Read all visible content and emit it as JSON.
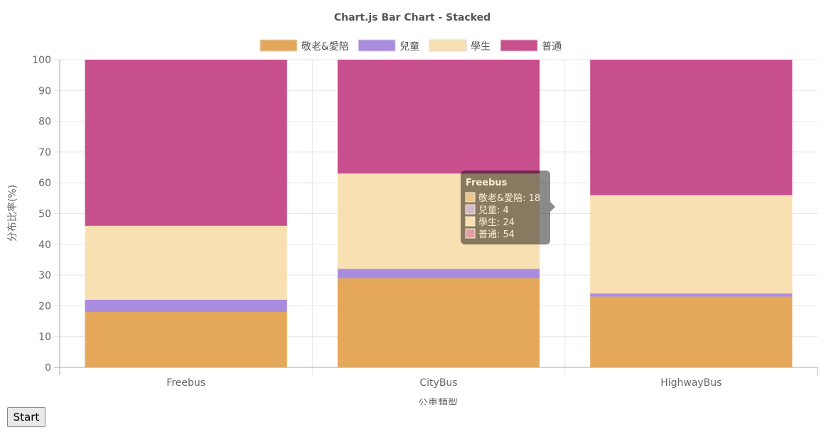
{
  "chart_data": {
    "type": "bar",
    "stacked": true,
    "title": "Chart.js Bar Chart - Stacked",
    "xlabel": "公車類型",
    "ylabel": "分布比率(%)",
    "ylim": [
      0,
      100
    ],
    "yticks": [
      0,
      10,
      20,
      30,
      40,
      50,
      60,
      70,
      80,
      90,
      100
    ],
    "grid": true,
    "legend_position": "top",
    "categories": [
      "Freebus",
      "CityBus",
      "HighwayBus"
    ],
    "series": [
      {
        "name": "敬老&愛陪",
        "color": "#e5a85a",
        "values": [
          18,
          29,
          23
        ]
      },
      {
        "name": "兒童",
        "color": "#a98bdf",
        "values": [
          4,
          3,
          1
        ]
      },
      {
        "name": "學生",
        "color": "#f8e0b2",
        "values": [
          24,
          31,
          32
        ]
      },
      {
        "name": "普通",
        "color": "#c84f8e",
        "values": [
          54,
          37,
          44
        ]
      }
    ],
    "tooltip": {
      "title": "Freebus",
      "lines": [
        "敬老&愛陪: 18",
        "兒童: 4",
        "學生: 24",
        "普通: 54"
      ],
      "opacity": 0.45
    }
  },
  "controls": {
    "start_label": "Start"
  }
}
